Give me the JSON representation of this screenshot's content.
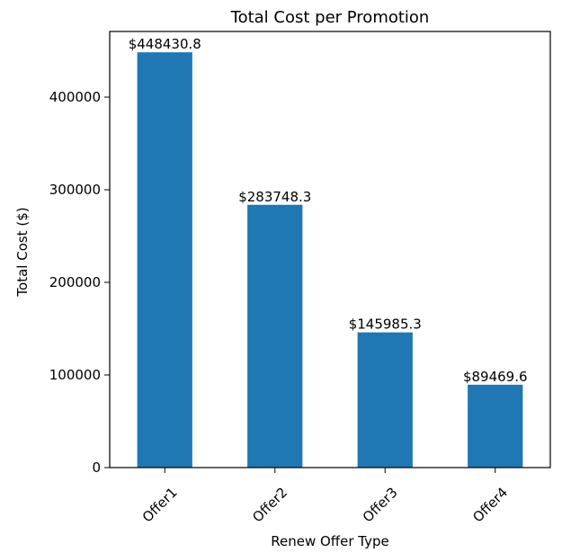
{
  "chart_data": {
    "type": "bar",
    "title": "Total Cost per Promotion",
    "xlabel": "Renew Offer Type",
    "ylabel": "Total Cost ($)",
    "categories": [
      "Offer1",
      "Offer2",
      "Offer3",
      "Offer4"
    ],
    "values": [
      448430.8,
      283748.3,
      145985.3,
      89469.6
    ],
    "data_labels": [
      "$448430.8",
      "$283748.3",
      "$145985.3",
      "$89469.6"
    ],
    "ylim": [
      0,
      470915
    ],
    "yticks": [
      0,
      100000,
      200000,
      300000,
      400000
    ],
    "ytick_labels": [
      "0",
      "100000",
      "200000",
      "300000",
      "400000"
    ],
    "bar_color": "#1f77b4",
    "grid": false,
    "legend": false
  }
}
